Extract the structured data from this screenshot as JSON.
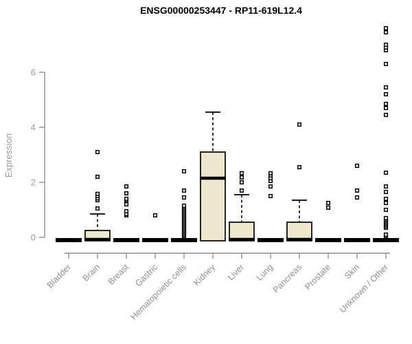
{
  "chart_data": {
    "type": "boxplot",
    "title": "ENSG00000253447 - RP11-619L12.4",
    "ylabel": "Expression",
    "xlabel": "",
    "ylim": [
      0,
      7.8
    ],
    "yticks": [
      0,
      2,
      4,
      6
    ],
    "grid": false,
    "legend": "none",
    "colors": {
      "box_fill": "#EDE8CD",
      "box_stroke": "#000000",
      "median": "#000000",
      "outlier_stroke": "#000000",
      "outlier_fill": "#ffffff",
      "axis": "#8e8e8e",
      "tick_label": "#9b9b9b",
      "title": "#000000"
    },
    "categories": [
      "Bladder",
      "Brain",
      "Breast",
      "Gastric",
      "Hematopoietic cells",
      "Kidney",
      "Liver",
      "Lung",
      "Pancreas",
      "Prostate",
      "Skin",
      "Unknown / Other"
    ],
    "series": [
      {
        "label": "Bladder",
        "q1": 0,
        "median": 0,
        "q3": 0,
        "whisker_low": 0,
        "whisker_high": 0,
        "outliers": []
      },
      {
        "label": "Brain",
        "q1": 0,
        "median": 0,
        "q3": 0.25,
        "whisker_low": 0,
        "whisker_high": 0.85,
        "outliers": [
          1.05,
          1.35,
          1.42,
          1.5,
          1.58,
          2.2,
          3.1
        ]
      },
      {
        "label": "Breast",
        "q1": 0,
        "median": 0,
        "q3": 0,
        "whisker_low": 0,
        "whisker_high": 0,
        "outliers": [
          0.8,
          0.85,
          0.95,
          1.2,
          1.35,
          1.4,
          1.6,
          1.85
        ]
      },
      {
        "label": "Gastric",
        "q1": 0,
        "median": 0,
        "q3": 0,
        "whisker_low": 0,
        "whisker_high": 0,
        "outliers": [
          0.8
        ]
      },
      {
        "label": "Hematopoietic cells",
        "q1": 0,
        "median": 0,
        "q3": 0,
        "whisker_low": 0,
        "whisker_high": 0,
        "outliers": [
          0.05,
          0.1,
          0.15,
          0.2,
          0.25,
          0.3,
          0.35,
          0.4,
          0.45,
          0.5,
          0.55,
          0.6,
          0.65,
          0.7,
          0.75,
          0.8,
          0.85,
          0.9,
          0.95,
          1.0,
          1.05,
          1.1,
          1.15,
          1.45,
          1.7,
          2.4
        ]
      },
      {
        "label": "Kidney",
        "q1": 0,
        "median": 2.15,
        "q3": 3.1,
        "whisker_low": 0,
        "whisker_high": 4.55,
        "outliers": []
      },
      {
        "label": "Liver",
        "q1": 0,
        "median": 0,
        "q3": 0.55,
        "whisker_low": 0,
        "whisker_high": 1.55,
        "outliers": [
          1.7,
          2.0,
          2.18,
          2.33
        ]
      },
      {
        "label": "Lung",
        "q1": 0,
        "median": 0,
        "q3": 0,
        "whisker_low": 0,
        "whisker_high": 0,
        "outliers": [
          1.5,
          1.85,
          2.05,
          2.15,
          2.25,
          2.33
        ]
      },
      {
        "label": "Pancreas",
        "q1": 0,
        "median": 0,
        "q3": 0.55,
        "whisker_low": 0,
        "whisker_high": 1.35,
        "outliers": [
          2.55,
          4.1
        ]
      },
      {
        "label": "Prostate",
        "q1": 0,
        "median": 0,
        "q3": 0,
        "whisker_low": 0,
        "whisker_high": 0,
        "outliers": [
          1.08,
          1.25
        ]
      },
      {
        "label": "Skin",
        "q1": 0,
        "median": 0,
        "q3": 0,
        "whisker_low": 0,
        "whisker_high": 0,
        "outliers": [
          1.45,
          1.7,
          2.6
        ]
      },
      {
        "label": "Unknown / Other",
        "q1": 0,
        "median": 0,
        "q3": 0,
        "whisker_low": 0,
        "whisker_high": 0,
        "outliers": [
          0.05,
          0.1,
          0.35,
          0.4,
          0.45,
          0.5,
          0.55,
          0.6,
          0.65,
          0.7,
          1.0,
          1.25,
          1.4,
          1.65,
          1.85,
          2.35,
          4.45,
          4.7,
          4.85,
          5.2,
          5.45,
          6.3,
          6.8,
          6.9,
          7.0,
          7.45,
          7.6
        ]
      }
    ]
  }
}
